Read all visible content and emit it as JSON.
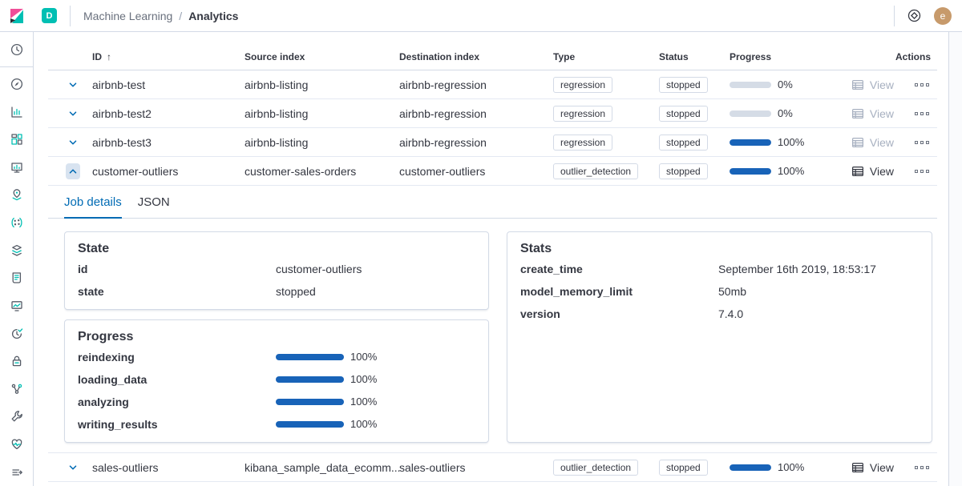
{
  "header": {
    "space_badge": "D",
    "breadcrumb": {
      "section": "Machine Learning",
      "separator": "/",
      "page": "Analytics"
    },
    "user_initial": "e"
  },
  "sidebar": {
    "items": [
      {
        "name": "recently-viewed",
        "icon": "clock-icon"
      },
      {
        "name": "discover",
        "icon": "compass-icon"
      },
      {
        "name": "visualize",
        "icon": "bar-chart-icon"
      },
      {
        "name": "dashboard",
        "icon": "dashboard-icon"
      },
      {
        "name": "canvas",
        "icon": "easel-icon"
      },
      {
        "name": "maps",
        "icon": "map-pin-icon"
      },
      {
        "name": "machine-learning",
        "icon": "machine-learning-icon",
        "active": true
      },
      {
        "name": "ingest",
        "icon": "layers-icon"
      },
      {
        "name": "logs",
        "icon": "scroll-icon"
      },
      {
        "name": "metrics",
        "icon": "monitor-icon"
      },
      {
        "name": "uptime",
        "icon": "uptime-check-icon"
      },
      {
        "name": "siem",
        "icon": "lock-icon"
      },
      {
        "name": "apm",
        "icon": "node-graph-icon"
      },
      {
        "name": "dev-tools",
        "icon": "wrench-icon"
      },
      {
        "name": "stack-monitoring",
        "icon": "heartbeat-icon"
      },
      {
        "name": "management",
        "icon": "manage-arrow-icon"
      }
    ]
  },
  "table": {
    "columns": {
      "id": "ID",
      "source": "Source index",
      "destination": "Destination index",
      "type": "Type",
      "status": "Status",
      "progress": "Progress",
      "actions": "Actions"
    },
    "sort_indicator": "↑",
    "view_label": "View",
    "rows": [
      {
        "id": "airbnb-test",
        "source": "airbnb-listing",
        "destination": "airbnb-regression",
        "type": "regression",
        "status": "stopped",
        "progress_pct": 0,
        "progress_label": "0%",
        "view_enabled": false,
        "expanded": false
      },
      {
        "id": "airbnb-test2",
        "source": "airbnb-listing",
        "destination": "airbnb-regression",
        "type": "regression",
        "status": "stopped",
        "progress_pct": 0,
        "progress_label": "0%",
        "view_enabled": false,
        "expanded": false
      },
      {
        "id": "airbnb-test3",
        "source": "airbnb-listing",
        "destination": "airbnb-regression",
        "type": "regression",
        "status": "stopped",
        "progress_pct": 100,
        "progress_label": "100%",
        "view_enabled": false,
        "expanded": false
      },
      {
        "id": "customer-outliers",
        "source": "customer-sales-orders",
        "destination": "customer-outliers",
        "type": "outlier_detection",
        "status": "stopped",
        "progress_pct": 100,
        "progress_label": "100%",
        "view_enabled": true,
        "expanded": true
      },
      {
        "id": "sales-outliers",
        "source": "kibana_sample_data_ecomm...",
        "destination": "sales-outliers",
        "type": "outlier_detection",
        "status": "stopped",
        "progress_pct": 100,
        "progress_label": "100%",
        "view_enabled": true,
        "expanded": false
      }
    ]
  },
  "details": {
    "tabs": [
      {
        "label": "Job details",
        "active": true
      },
      {
        "label": "JSON",
        "active": false
      }
    ],
    "state_panel": {
      "title": "State",
      "rows": [
        {
          "label": "id",
          "value": "customer-outliers"
        },
        {
          "label": "state",
          "value": "stopped"
        }
      ]
    },
    "progress_panel": {
      "title": "Progress",
      "rows": [
        {
          "label": "reindexing",
          "value": 100,
          "text": "100%"
        },
        {
          "label": "loading_data",
          "value": 100,
          "text": "100%"
        },
        {
          "label": "analyzing",
          "value": 100,
          "text": "100%"
        },
        {
          "label": "writing_results",
          "value": 100,
          "text": "100%"
        }
      ]
    },
    "stats_panel": {
      "title": "Stats",
      "rows": [
        {
          "label": "create_time",
          "value": "September 16th 2019, 18:53:17"
        },
        {
          "label": "model_memory_limit",
          "value": "50mb"
        },
        {
          "label": "version",
          "value": "7.4.0"
        }
      ]
    }
  },
  "colors": {
    "primary": "#006BB4",
    "teal": "#00BFB3",
    "pink": "#F04E98",
    "progress": "#1863b8",
    "border": "#D3DAE6",
    "row_border": "#E4E9F2",
    "track": "#D5DCE6",
    "text": "#343741",
    "subdued": "#69707D",
    "disabled": "#A7B0C0",
    "avatar_bg": "#C79A6B",
    "expander_bg": "#D8E3F0"
  }
}
